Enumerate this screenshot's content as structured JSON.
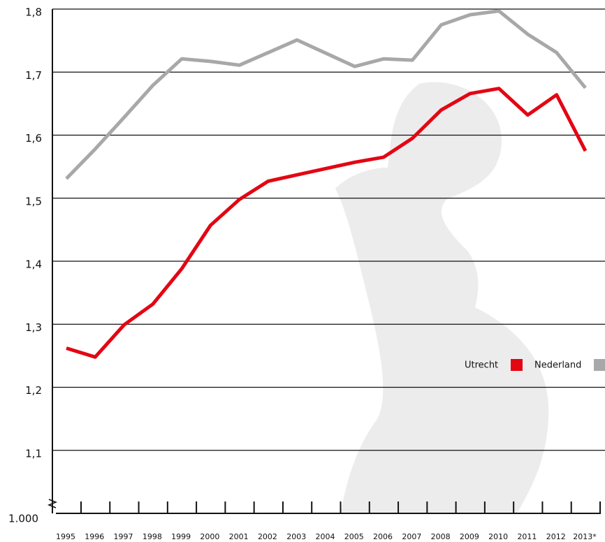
{
  "chart_data": {
    "type": "line",
    "categories": [
      "1995",
      "1996",
      "1997",
      "1998",
      "1999",
      "2000",
      "2001",
      "2002",
      "2003",
      "2004",
      "2005",
      "2006",
      "2007",
      "2008",
      "2009",
      "2010",
      "2011",
      "2012",
      "2013*"
    ],
    "series": [
      {
        "name": "Utrecht",
        "color": "#e30613",
        "values": [
          1.262,
          1.248,
          1.299,
          1.332,
          1.388,
          1.457,
          1.498,
          1.527,
          1.537,
          1.547,
          1.557,
          1.565,
          1.595,
          1.64,
          1.666,
          1.674,
          1.632,
          1.664,
          1.575
        ]
      },
      {
        "name": "Nederland",
        "color": "#a8a8aa",
        "values": [
          1.531,
          1.578,
          1.628,
          1.679,
          1.721,
          1.717,
          1.711,
          1.731,
          1.751,
          1.73,
          1.709,
          1.721,
          1.719,
          1.775,
          1.791,
          1.797,
          1.76,
          1.731,
          1.675
        ]
      }
    ],
    "ylim": [
      1.0,
      1.8
    ],
    "yticks": [
      {
        "value": 1.0,
        "label": "1.000"
      },
      {
        "value": 1.1,
        "label": "1,1"
      },
      {
        "value": 1.2,
        "label": "1,2"
      },
      {
        "value": 1.3,
        "label": "1,3"
      },
      {
        "value": 1.4,
        "label": "1,4"
      },
      {
        "value": 1.5,
        "label": "1,5"
      },
      {
        "value": 1.6,
        "label": "1,6"
      },
      {
        "value": 1.7,
        "label": "1,7"
      },
      {
        "value": 1.8,
        "label": "1,8"
      }
    ],
    "grid": true
  }
}
